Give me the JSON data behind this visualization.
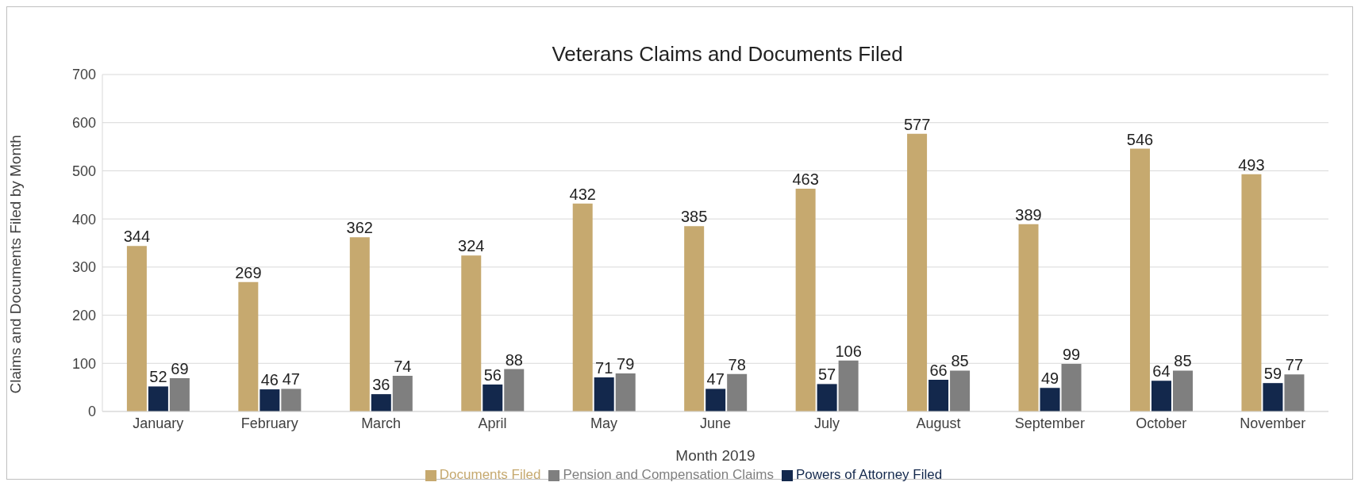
{
  "chart_data": {
    "type": "bar",
    "title": "Veterans Claims and Documents Filed",
    "xlabel": "Month 2019",
    "ylabel": "Claims and Documents Filed by Month",
    "categories": [
      "January",
      "February",
      "March",
      "April",
      "May",
      "June",
      "July",
      "August",
      "September",
      "October",
      "November"
    ],
    "series": [
      {
        "name": "Documents Filed",
        "color": "#c6a96f",
        "values": [
          344,
          269,
          362,
          324,
          432,
          385,
          463,
          577,
          389,
          546,
          493
        ]
      },
      {
        "name": "Powers of Attorney Filed",
        "color": "#13284c",
        "values": [
          52,
          46,
          36,
          56,
          71,
          47,
          57,
          66,
          49,
          64,
          59
        ]
      },
      {
        "name": "Pension and Compensation Claims",
        "color": "#7f7f7f",
        "values": [
          69,
          47,
          74,
          88,
          79,
          78,
          106,
          85,
          99,
          85,
          77
        ]
      }
    ],
    "ylim": [
      0,
      700
    ],
    "yticks": [
      0,
      100,
      200,
      300,
      400,
      500,
      600,
      700
    ],
    "grid": "y",
    "legend": "bottom",
    "data_labels": true
  }
}
